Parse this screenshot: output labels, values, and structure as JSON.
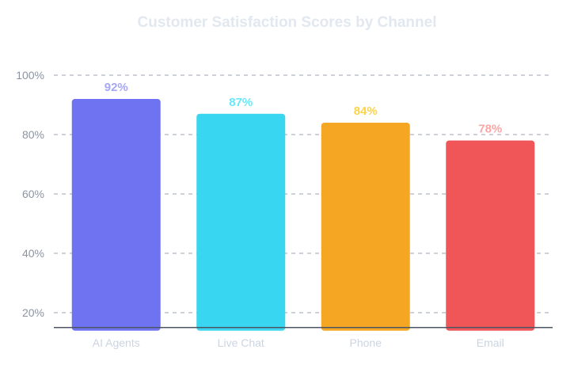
{
  "chart_data": {
    "type": "bar",
    "title": "Customer Satisfaction Scores by Channel",
    "xlabel": "",
    "ylabel": "",
    "categories": [
      "AI Agents",
      "Live Chat",
      "Phone",
      "Email"
    ],
    "values": [
      92,
      87,
      84,
      78
    ],
    "data_labels": [
      "92%",
      "87%",
      "84%",
      "78%"
    ],
    "bar_colors": [
      "#6f73f2",
      "#38d6f0",
      "#f5a623",
      "#f05557"
    ],
    "label_colors": [
      "#a5a8f7",
      "#67e8f9",
      "#fcd34d",
      "#fca5a5"
    ],
    "yticks": [
      20,
      40,
      60,
      80,
      100
    ],
    "ytick_labels": [
      "20%",
      "40%",
      "60%",
      "80%",
      "100%"
    ],
    "ylim": [
      15,
      100
    ],
    "grid": true,
    "legend": "none"
  }
}
